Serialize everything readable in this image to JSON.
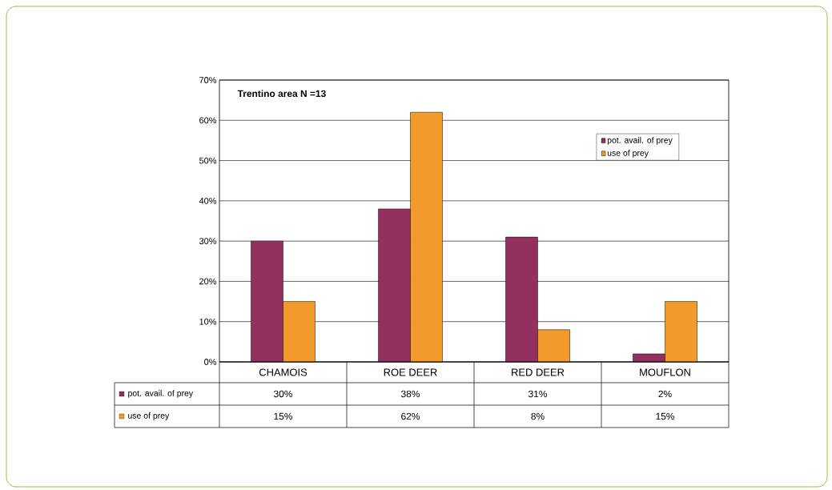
{
  "chart_data": {
    "type": "bar",
    "title": "Trentino area N =13",
    "categories": [
      "CHAMOIS",
      "ROE DEER",
      "RED DEER",
      "MOUFLON"
    ],
    "series": [
      {
        "name": "pot. avail. of prey",
        "color": "#94305f",
        "values": [
          30,
          38,
          31,
          2
        ],
        "value_labels": [
          "30%",
          "38%",
          "31%",
          "2%"
        ]
      },
      {
        "name": "use of prey",
        "color": "#f39a2c",
        "values": [
          15,
          62,
          8,
          15
        ],
        "value_labels": [
          "15%",
          "62%",
          "8%",
          "15%"
        ]
      }
    ],
    "ylim": [
      0,
      70
    ],
    "yticks": [
      {
        "value": 0,
        "label": "0%"
      },
      {
        "value": 10,
        "label": "10%"
      },
      {
        "value": 20,
        "label": "20%"
      },
      {
        "value": 30,
        "label": "30%"
      },
      {
        "value": 40,
        "label": "40%"
      },
      {
        "value": 50,
        "label": "50%"
      },
      {
        "value": 60,
        "label": "60%"
      },
      {
        "value": 70,
        "label": "70%"
      }
    ],
    "grid": "y",
    "legend": "top right"
  }
}
